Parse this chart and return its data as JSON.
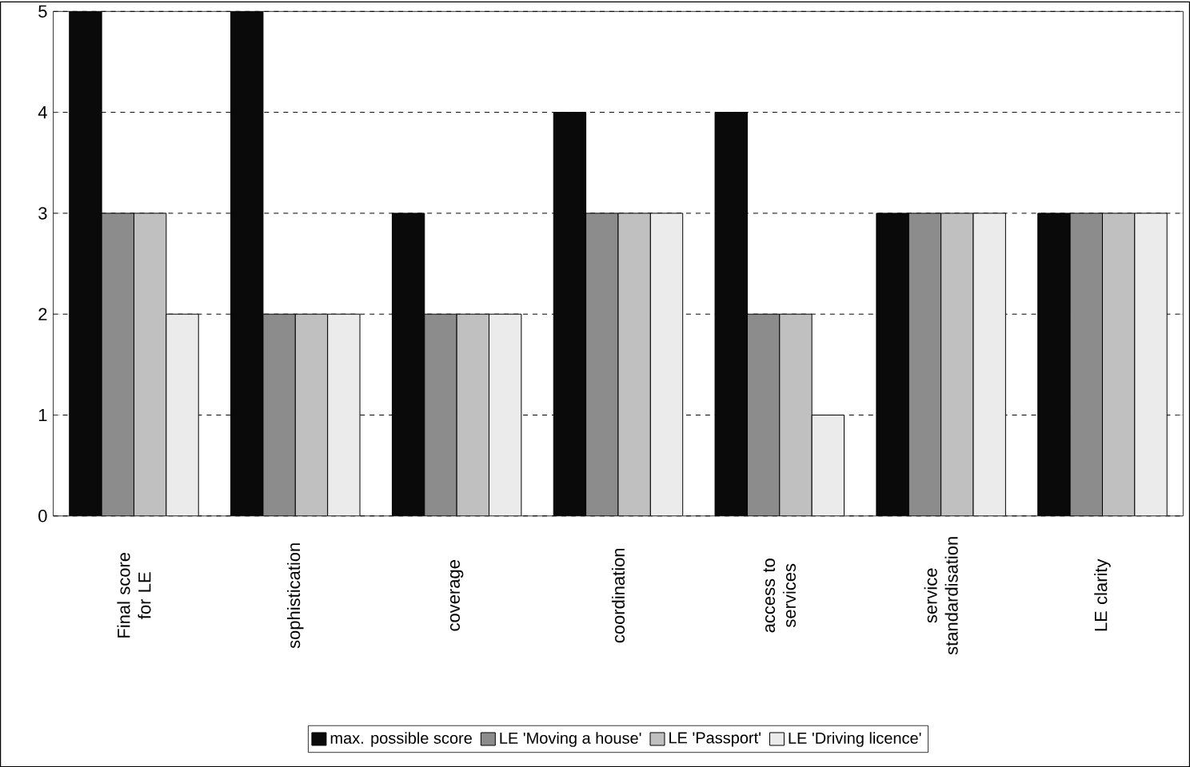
{
  "chart_data": {
    "type": "bar",
    "categories": [
      "Final score for LE",
      "sophistication",
      "coverage",
      "coordination",
      "access to services",
      "service standardisation",
      "LE clarity"
    ],
    "series": [
      {
        "name": "max. possible score",
        "color": "#0a0a0a",
        "values": [
          5,
          5,
          3,
          4,
          4,
          3,
          3
        ]
      },
      {
        "name": "LE 'Moving a house'",
        "color": "#8c8c8c",
        "values": [
          3,
          2,
          2,
          3,
          2,
          3,
          3
        ]
      },
      {
        "name": "LE 'Passport'",
        "color": "#c0c0c0",
        "values": [
          3,
          2,
          2,
          3,
          2,
          3,
          3
        ]
      },
      {
        "name": "LE 'Driving licence'",
        "color": "#ebebeb",
        "values": [
          2,
          2,
          2,
          3,
          1,
          3,
          3
        ]
      }
    ],
    "ylim": [
      0,
      5
    ],
    "yticks": [
      0,
      1,
      2,
      3,
      4,
      5
    ],
    "grid": "y",
    "legend": "bottom"
  }
}
